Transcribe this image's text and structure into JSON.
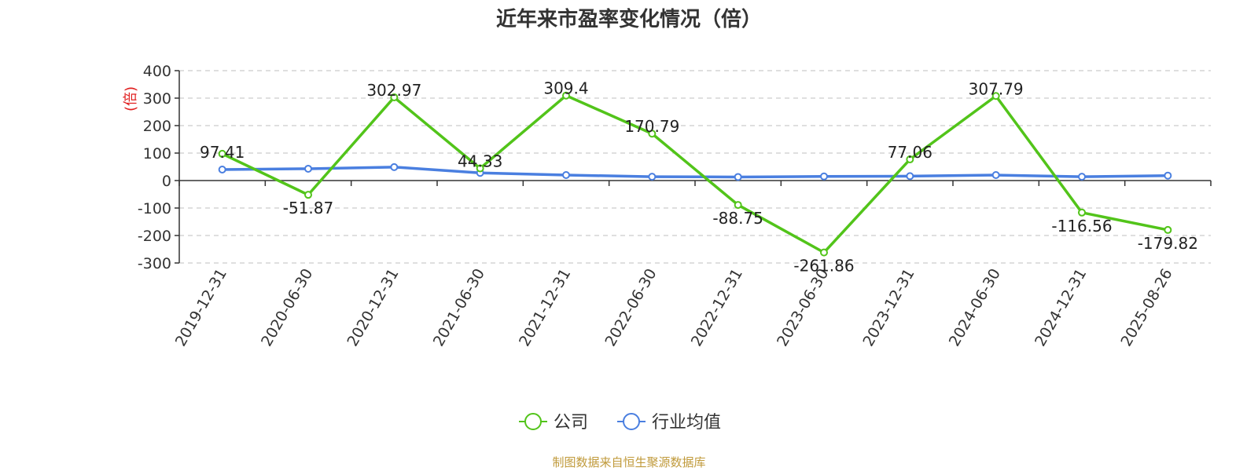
{
  "chart_data": {
    "type": "line",
    "title": "近年来市盈率变化情况（倍）",
    "ylabel": "(倍)",
    "xlabel": "",
    "source": "制图数据来自恒生聚源数据库",
    "ylim": [
      -300,
      400
    ],
    "yticks": [
      400,
      300,
      200,
      100,
      0,
      -100,
      -200,
      -300
    ],
    "grid": true,
    "legend_position": "bottom-center",
    "categories": [
      "2019-12-31",
      "2020-06-30",
      "2020-12-31",
      "2021-06-30",
      "2021-12-31",
      "2022-06-30",
      "2022-12-31",
      "2023-06-30",
      "2023-12-31",
      "2024-06-30",
      "2024-12-31",
      "2025-08-26"
    ],
    "series": [
      {
        "name": "公司",
        "color": "#52c41a",
        "values": [
          97.41,
          -51.87,
          302.97,
          44.33,
          309.4,
          170.79,
          -88.75,
          -261.86,
          77.06,
          307.79,
          -116.56,
          -179.82
        ],
        "labels": [
          "97.41",
          "-51.87",
          "302.97",
          "44.33",
          "309.4",
          "170.79",
          "-88.75",
          "-261.86",
          "77.06",
          "307.79",
          "-116.56",
          "-179.82"
        ]
      },
      {
        "name": "行业均值",
        "color": "#4a7fe0",
        "values": [
          40,
          43,
          49,
          28,
          20,
          14,
          13,
          15,
          16,
          20,
          14,
          18
        ]
      }
    ]
  }
}
